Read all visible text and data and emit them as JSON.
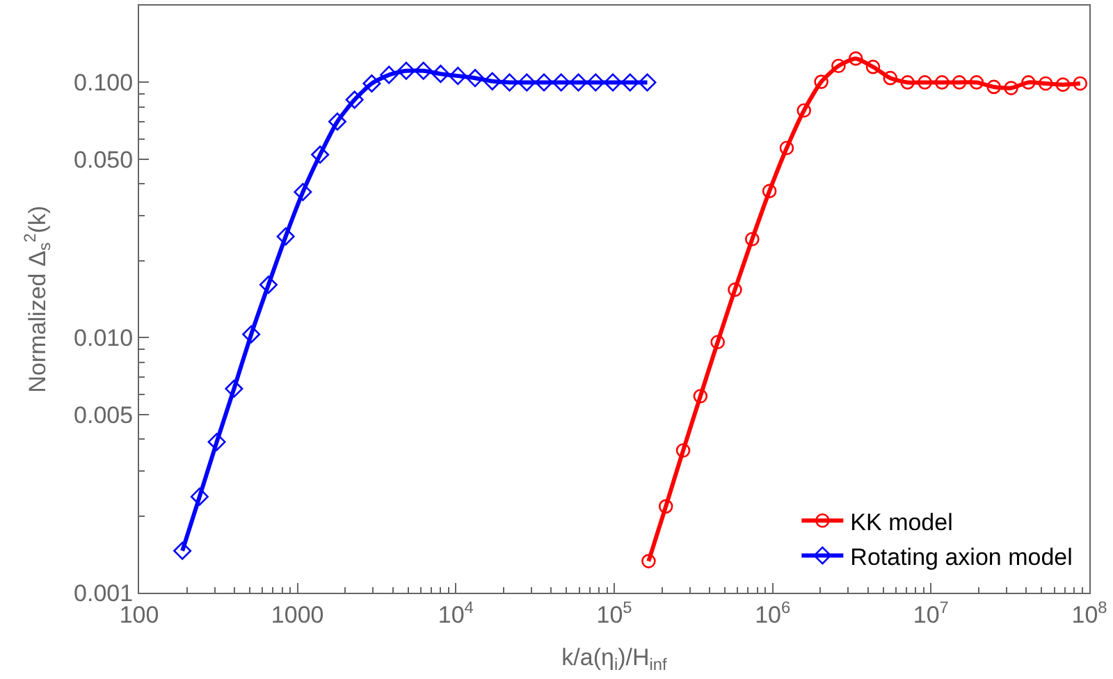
{
  "chart_data": {
    "type": "line",
    "xlabel": "k/a(η$_{i}$)/H$_{inf}$",
    "ylabel": "Normalized Δ$_{s}$$^{2}$(k)",
    "log": "xy",
    "xlim": [
      100,
      100000000
    ],
    "xticks": [
      100,
      1000,
      {
        "value": 10000,
        "label": "10$^{4}$"
      },
      {
        "value": 100000,
        "label": "10$^{5}$"
      },
      {
        "value": 1000000,
        "label": "10$^{6}$"
      },
      {
        "value": 10000000,
        "label": "10$^{7}$"
      },
      {
        "value": 100000000,
        "label": "10$^{8}$"
      }
    ],
    "ylim": [
      0.001,
      0.2
    ],
    "yticks": [
      0.001,
      0.005,
      {
        "value": 0.01,
        "label": "0.010"
      },
      {
        "value": 0.05,
        "label": "0.050"
      },
      {
        "value": 0.1,
        "label": "0.100"
      }
    ],
    "legend": "bottom right",
    "line_style": "solid",
    "series": [
      {
        "name": "KK model",
        "color": "#ff0000",
        "marker": "circle",
        "x": [
          164800,
          211800,
          272300,
          350000,
          449800,
          578100,
          743100,
          955100,
          1227600,
          1577800,
          2028000,
          2607000,
          3350000,
          4306000,
          5535000,
          7114000,
          9143000,
          11750000,
          15100000,
          19410000,
          24950000,
          32070000,
          41220000,
          52980000,
          68100000,
          87520000
        ],
        "values": [
          0.00133,
          0.00218,
          0.00361,
          0.00589,
          0.0096,
          0.0154,
          0.0243,
          0.0375,
          0.0553,
          0.0776,
          0.1005,
          0.116,
          0.124,
          0.115,
          0.104,
          0.1,
          0.1,
          0.1,
          0.1,
          0.1,
          0.096,
          0.095,
          0.1,
          0.099,
          0.098,
          0.099
        ]
      },
      {
        "name": "Rotating axion model",
        "color": "#0000ff",
        "marker": "diamond",
        "x": [
          187.5,
          240.8,
          309.3,
          397.3,
          510.4,
          655.6,
          842.1,
          1082,
          1389,
          1785,
          2292,
          2944,
          3782,
          4858,
          6240,
          8016,
          10300,
          13230,
          16990,
          21820,
          28030,
          36010,
          46250,
          59410,
          76310,
          98020,
          125900,
          161700
        ],
        "values": [
          0.00146,
          0.00238,
          0.0039,
          0.0063,
          0.0103,
          0.0161,
          0.0249,
          0.0372,
          0.0521,
          0.0702,
          0.0855,
          0.099,
          0.107,
          0.111,
          0.111,
          0.108,
          0.106,
          0.104,
          0.101,
          0.1,
          0.1,
          0.1,
          0.1,
          0.1,
          0.1,
          0.1,
          0.1,
          0.1
        ]
      }
    ]
  }
}
